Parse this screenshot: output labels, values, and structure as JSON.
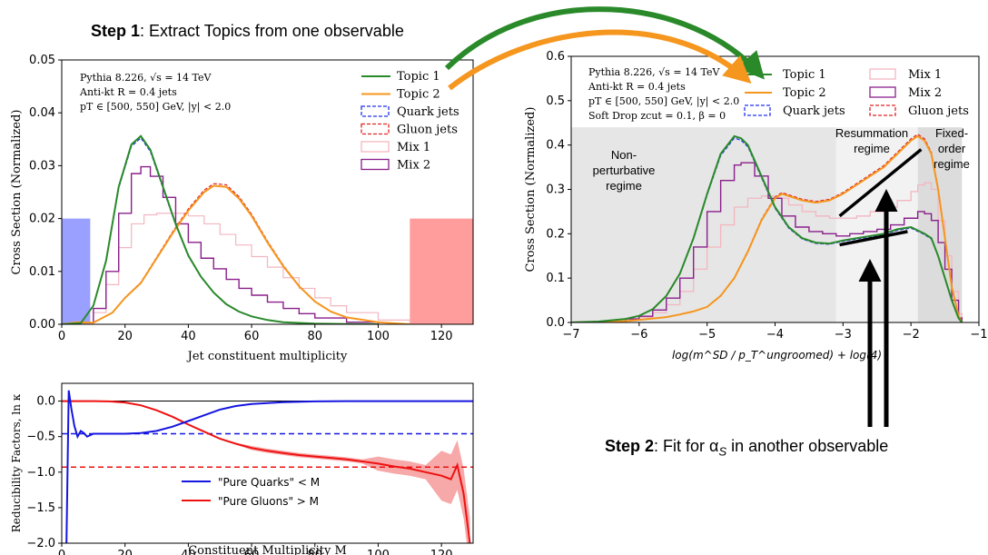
{
  "step1": {
    "bold": "Step 1",
    "rest": ": Extract Topics from one observable"
  },
  "step2": {
    "bold": "Step 2",
    "rest": ": Fit for α",
    "sub": "S",
    "rest2": " in another observable"
  },
  "colors": {
    "topic1": "#2a8a2a",
    "topic2": "#f5961e",
    "quark": "#2233ee",
    "gluon": "#e02424",
    "mix1": "#f3b6c0",
    "mix2": "#8a1f8a",
    "quark_band": "#9aa0ff",
    "gluon_band": "#ff9d9d",
    "pure_quarks": "#1515e0",
    "pure_gluons": "#ee1111"
  },
  "chart_data": [
    {
      "id": "left",
      "type": "line",
      "ylabel": "Cross Section (Normalized)",
      "xlabel": "Jet constituent multiplicity",
      "xlim": [
        0,
        130
      ],
      "ylim": [
        0,
        0.05
      ],
      "xticks": [
        "0",
        "20",
        "40",
        "60",
        "80",
        "100",
        "120"
      ],
      "yticks": [
        "0.00",
        "0.01",
        "0.02",
        "0.03",
        "0.04",
        "0.05"
      ],
      "info": [
        "Pythia 8.226, √s = 14 TeV",
        "Anti-kt R = 0.4 jets",
        "pT ∈ [500, 550] GeV, |y| < 2.0"
      ],
      "legend": [
        "Topic 1",
        "Topic 2",
        "Quark jets",
        "Gluon jets",
        "Mix 1",
        "Mix 2"
      ],
      "shaded": [
        {
          "x": [
            0,
            9
          ],
          "y": 0.02,
          "name": "quark-region"
        },
        {
          "x": [
            110,
            130
          ],
          "y": 0.02,
          "name": "gluon-region"
        }
      ],
      "series": [
        {
          "name": "Topic 1",
          "x": [
            0,
            6,
            10,
            14,
            18,
            22,
            25,
            28,
            32,
            36,
            40,
            44,
            48,
            52,
            56,
            60,
            65,
            70,
            80,
            90,
            100
          ],
          "values": [
            0,
            0.0002,
            0.0035,
            0.012,
            0.026,
            0.034,
            0.0356,
            0.033,
            0.026,
            0.019,
            0.013,
            0.009,
            0.006,
            0.0038,
            0.0024,
            0.0015,
            0.0008,
            0.0004,
            0.00012,
            3e-05,
            0
          ]
        },
        {
          "name": "Topic 2",
          "x": [
            0,
            5,
            10,
            16,
            20,
            25,
            30,
            35,
            40,
            45,
            48,
            52,
            56,
            60,
            65,
            70,
            75,
            80,
            85,
            90,
            100,
            110
          ],
          "values": [
            0,
            0.0004,
            0.0003,
            0.0022,
            0.005,
            0.0078,
            0.0125,
            0.0172,
            0.0215,
            0.025,
            0.0262,
            0.026,
            0.0238,
            0.0205,
            0.0155,
            0.011,
            0.0072,
            0.0043,
            0.0024,
            0.0013,
            0.0004,
            0
          ]
        },
        {
          "name": "Mix 2",
          "x": [
            0,
            6,
            10,
            14,
            18,
            22,
            25,
            28,
            32,
            36,
            40,
            44,
            48,
            52,
            56,
            60,
            65,
            70,
            75,
            80,
            90,
            100
          ],
          "values": [
            0,
            0.0003,
            0.003,
            0.01,
            0.021,
            0.0285,
            0.0298,
            0.028,
            0.024,
            0.019,
            0.0155,
            0.0125,
            0.0105,
            0.0085,
            0.0068,
            0.0055,
            0.0042,
            0.003,
            0.002,
            0.0012,
            0.0004,
            0.0001
          ]
        },
        {
          "name": "Mix 1",
          "x": [
            0,
            6,
            10,
            14,
            18,
            22,
            26,
            30,
            35,
            40,
            45,
            50,
            55,
            60,
            65,
            70,
            75,
            80,
            85,
            90,
            100,
            110
          ],
          "values": [
            0,
            0.0002,
            0.0022,
            0.0075,
            0.0145,
            0.019,
            0.0207,
            0.021,
            0.021,
            0.0205,
            0.019,
            0.017,
            0.015,
            0.0128,
            0.0108,
            0.0088,
            0.0068,
            0.005,
            0.0035,
            0.0022,
            0.0008,
            0.0002
          ]
        }
      ]
    },
    {
      "id": "bottom",
      "type": "line",
      "ylabel": "Reducibility Factors, ln κ",
      "xlabel": "Constituent Multiplicity M",
      "xlim": [
        0,
        130
      ],
      "ylim": [
        -2.0,
        0.25
      ],
      "xticks": [
        "0",
        "20",
        "40",
        "60",
        "80",
        "100",
        "120"
      ],
      "yticks": [
        "0.0",
        "−0.5",
        "−1.0",
        "−1.5",
        "−2.0"
      ],
      "hlines": [
        {
          "name": "pure-quarks-dashed",
          "y": -0.46
        },
        {
          "name": "pure-gluons-dashed",
          "y": -0.93
        }
      ],
      "legend": [
        "\"Pure Quarks\" < M",
        "\"Pure Gluons\" > M"
      ],
      "series": [
        {
          "name": "\"Pure Quarks\" < M",
          "x": [
            1.5,
            2.2,
            3,
            4,
            5,
            6,
            7,
            8,
            10,
            15,
            20,
            25,
            30,
            35,
            40,
            45,
            50,
            55,
            60,
            70,
            80,
            90,
            100,
            110,
            120,
            130
          ],
          "values": [
            -2.0,
            0.15,
            -0.1,
            -0.35,
            -0.5,
            -0.42,
            -0.45,
            -0.5,
            -0.46,
            -0.46,
            -0.46,
            -0.45,
            -0.42,
            -0.36,
            -0.28,
            -0.2,
            -0.12,
            -0.07,
            -0.04,
            -0.015,
            -0.005,
            0,
            0,
            0,
            0,
            0
          ]
        },
        {
          "name": "\"Pure Gluons\" > M",
          "x": [
            0,
            10,
            15,
            20,
            25,
            30,
            35,
            40,
            45,
            50,
            55,
            60,
            65,
            70,
            75,
            80,
            85,
            90,
            95,
            100,
            105,
            110,
            115,
            120,
            123,
            125,
            127,
            129
          ],
          "values": [
            0,
            0,
            -0.005,
            -0.02,
            -0.06,
            -0.13,
            -0.22,
            -0.33,
            -0.43,
            -0.53,
            -0.6,
            -0.66,
            -0.7,
            -0.73,
            -0.76,
            -0.78,
            -0.8,
            -0.82,
            -0.85,
            -0.88,
            -0.92,
            -0.95,
            -1.0,
            -1.05,
            -1.1,
            -0.9,
            -1.3,
            -2.0
          ]
        }
      ]
    },
    {
      "id": "right",
      "type": "line",
      "ylabel": "Cross Section (Normalized)",
      "xlabel": "log(m^SD / p_T^ungroomed) + log(4)",
      "xlim": [
        -7,
        -1
      ],
      "ylim": [
        0,
        0.6
      ],
      "xticks": [
        "−7",
        "−6",
        "−5",
        "−4",
        "−3",
        "−2",
        "−1"
      ],
      "yticks": [
        "0.0",
        "0.1",
        "0.2",
        "0.3",
        "0.4",
        "0.5",
        "0.6"
      ],
      "info": [
        "Pythia 8.226, √s = 14 TeV",
        "Anti-kt R = 0.4 jets",
        "pT ∈ [500, 550] GeV, |y| < 2.0",
        "Soft Drop zcut = 0.1, β = 0"
      ],
      "legend": [
        "Topic 1",
        "Topic 2",
        "Quark jets",
        "Mix 1",
        "Mix 2",
        "Gluon jets"
      ],
      "regimes": [
        {
          "name": "non-perturbative",
          "x": [
            -7,
            -3.1
          ],
          "label": [
            "Non-",
            "perturbative",
            "regime"
          ]
        },
        {
          "name": "resummation",
          "x": [
            -3.1,
            -1.9
          ],
          "label": [
            "Resummation",
            "regime"
          ]
        },
        {
          "name": "fixed-order",
          "x": [
            -1.9,
            -1.25
          ],
          "label": [
            "Fixed-",
            "order",
            "regime"
          ]
        }
      ],
      "series": [
        {
          "name": "Topic 1",
          "x": [
            -7,
            -6.6,
            -6.2,
            -6.0,
            -5.8,
            -5.6,
            -5.4,
            -5.2,
            -5.0,
            -4.8,
            -4.6,
            -4.5,
            -4.4,
            -4.2,
            -4.0,
            -3.8,
            -3.6,
            -3.4,
            -3.2,
            -3.0,
            -2.8,
            -2.6,
            -2.4,
            -2.2,
            -2.0,
            -1.8,
            -1.7,
            -1.6,
            -1.5,
            -1.4,
            -1.3,
            -1.25
          ],
          "values": [
            0,
            0.002,
            0.008,
            0.015,
            0.03,
            0.06,
            0.11,
            0.19,
            0.29,
            0.38,
            0.42,
            0.415,
            0.4,
            0.33,
            0.26,
            0.215,
            0.19,
            0.18,
            0.178,
            0.185,
            0.19,
            0.195,
            0.2,
            0.21,
            0.215,
            0.2,
            0.19,
            0.15,
            0.1,
            0.05,
            0.01,
            0
          ]
        },
        {
          "name": "Topic 2",
          "x": [
            -7,
            -6.2,
            -6.0,
            -5.8,
            -5.6,
            -5.4,
            -5.2,
            -5.0,
            -4.8,
            -4.6,
            -4.4,
            -4.2,
            -4.0,
            -3.9,
            -3.8,
            -3.6,
            -3.4,
            -3.2,
            -3.0,
            -2.8,
            -2.6,
            -2.4,
            -2.2,
            -2.0,
            -1.9,
            -1.8,
            -1.7,
            -1.6,
            -1.5,
            -1.4,
            -1.3,
            -1.25
          ],
          "values": [
            0,
            0.003,
            0.006,
            0.009,
            0.012,
            0.018,
            0.025,
            0.035,
            0.06,
            0.1,
            0.16,
            0.23,
            0.28,
            0.29,
            0.285,
            0.275,
            0.27,
            0.275,
            0.29,
            0.31,
            0.33,
            0.35,
            0.38,
            0.41,
            0.42,
            0.41,
            0.38,
            0.3,
            0.19,
            0.08,
            0.015,
            0
          ]
        },
        {
          "name": "Mix 2",
          "x": [
            -7,
            -6.6,
            -6.2,
            -6.0,
            -5.8,
            -5.6,
            -5.4,
            -5.2,
            -5.0,
            -4.8,
            -4.6,
            -4.5,
            -4.3,
            -4.1,
            -3.9,
            -3.7,
            -3.5,
            -3.3,
            -3.1,
            -2.9,
            -2.7,
            -2.5,
            -2.3,
            -2.1,
            -1.9,
            -1.8,
            -1.7,
            -1.6,
            -1.5,
            -1.4,
            -1.3,
            -1.25
          ],
          "values": [
            0,
            0.002,
            0.008,
            0.014,
            0.028,
            0.055,
            0.1,
            0.17,
            0.25,
            0.32,
            0.355,
            0.36,
            0.33,
            0.28,
            0.24,
            0.215,
            0.205,
            0.2,
            0.195,
            0.2,
            0.205,
            0.21,
            0.22,
            0.235,
            0.25,
            0.245,
            0.23,
            0.18,
            0.12,
            0.05,
            0.01,
            0
          ]
        },
        {
          "name": "Mix 1",
          "x": [
            -7,
            -6.6,
            -6.2,
            -6.0,
            -5.8,
            -5.6,
            -5.4,
            -5.2,
            -5.0,
            -4.8,
            -4.6,
            -4.4,
            -4.2,
            -4.0,
            -3.8,
            -3.6,
            -3.4,
            -3.2,
            -3.0,
            -2.8,
            -2.6,
            -2.4,
            -2.2,
            -2.0,
            -1.9,
            -1.8,
            -1.7,
            -1.6,
            -1.5,
            -1.4,
            -1.3,
            -1.25
          ],
          "values": [
            0,
            0.002,
            0.006,
            0.012,
            0.022,
            0.04,
            0.07,
            0.12,
            0.17,
            0.22,
            0.26,
            0.28,
            0.285,
            0.28,
            0.265,
            0.25,
            0.24,
            0.235,
            0.235,
            0.24,
            0.25,
            0.26,
            0.275,
            0.295,
            0.31,
            0.315,
            0.3,
            0.23,
            0.15,
            0.07,
            0.02,
            0
          ]
        }
      ],
      "fit_lines": [
        {
          "name": "resummation-fit-upper",
          "x": [
            -3.05,
            -1.85
          ],
          "y": [
            0.24,
            0.39
          ]
        },
        {
          "name": "resummation-fit-lower",
          "x": [
            -3.05,
            -2.05
          ],
          "y": [
            0.175,
            0.205
          ]
        }
      ]
    }
  ]
}
